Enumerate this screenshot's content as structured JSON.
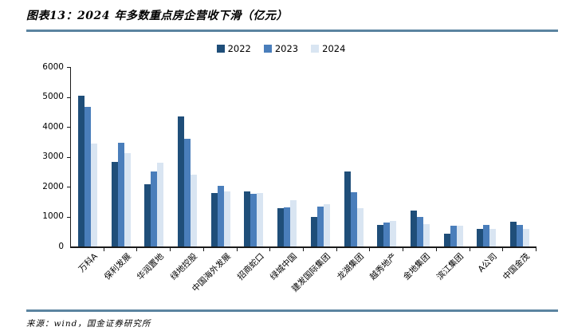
{
  "page": {
    "title": "图表13：2024 年多数重点房企营收下滑（亿元）",
    "source": "来源：wind，国金证券研究所"
  },
  "colors": {
    "rule": "#5b84a0",
    "axis": "#1a1a1a",
    "series_2022": "#1f4e79",
    "series_2023": "#4a7ebb",
    "series_2024": "#d9e5f2"
  },
  "chart_data": {
    "type": "bar",
    "title": "2024 年多数重点房企营收下滑（亿元）",
    "unit": "亿元",
    "legend_position": "top-center",
    "grid": false,
    "ylim": [
      0,
      6000
    ],
    "yticks": [
      0,
      1000,
      2000,
      3000,
      4000,
      5000,
      6000
    ],
    "categories": [
      "万科A",
      "保利发展",
      "华润置地",
      "绿地控股",
      "中国海外发展",
      "招商蛇口",
      "绿城中国",
      "建发国际集团",
      "龙湖集团",
      "越秀地产",
      "金地集团",
      "滨江集团",
      "A公司",
      "中国金茂"
    ],
    "series": [
      {
        "name": "2022",
        "color": "#1f4e79",
        "values": [
          5050,
          2820,
          2070,
          4360,
          1800,
          1830,
          1270,
          1000,
          2510,
          720,
          1200,
          420,
          590,
          830
        ]
      },
      {
        "name": "2023",
        "color": "#4a7ebb",
        "values": [
          4660,
          3470,
          2510,
          3600,
          2020,
          1750,
          1310,
          1330,
          1810,
          790,
          980,
          690,
          720,
          720
        ]
      },
      {
        "name": "2024",
        "color": "#d9e5f2",
        "values": [
          3430,
          3120,
          2790,
          2400,
          1850,
          1790,
          1560,
          1420,
          1270,
          850,
          750,
          690,
          600,
          590
        ]
      }
    ]
  }
}
